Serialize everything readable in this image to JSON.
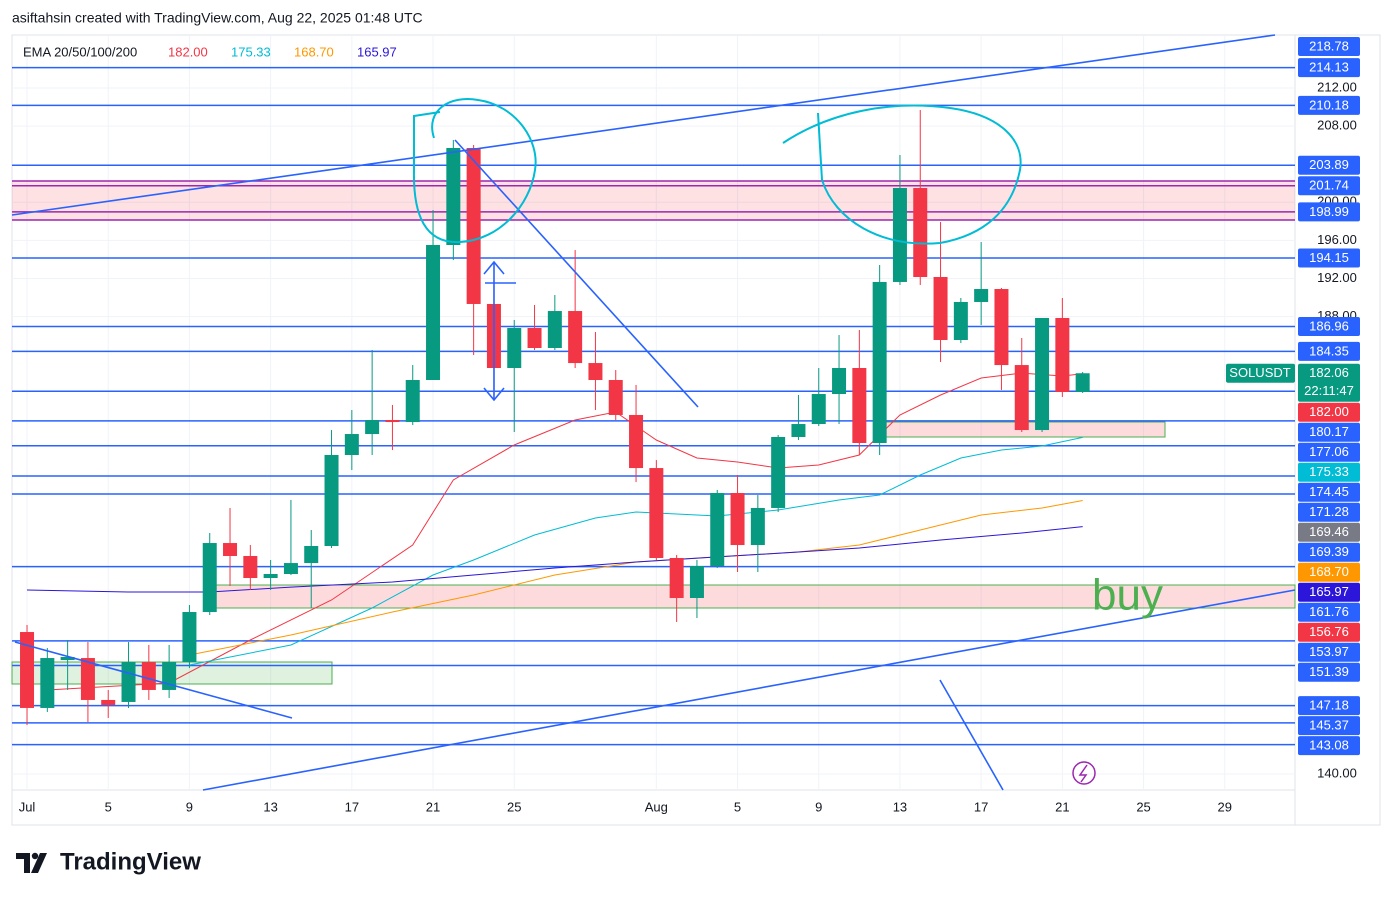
{
  "header": "asiftahsin created with TradingView.com, Aug 22, 2025 01:48 UTC",
  "logo": "TradingView",
  "chart_data": {
    "type": "candlestick",
    "symbol": "SOLUSDT",
    "countdown": "22:11:47",
    "indicator": "EMA 20/50/100/200",
    "annotation": "buy",
    "up_color": "#089981",
    "down_color": "#f23645",
    "open": [
      154.9,
      146.93,
      151.96,
      152.17,
      147.77,
      147.56,
      151.75,
      148.82,
      151.75,
      157.0,
      164.24,
      162.88,
      160.57,
      160.99,
      162.14,
      163.93,
      173.48,
      175.68,
      177.15,
      176.94,
      181.35,
      195.52,
      205.7,
      189.33,
      182.61,
      186.81,
      184.71,
      188.59,
      183.13,
      181.35,
      177.68,
      172.11,
      162.67,
      158.47,
      161.83,
      169.49,
      164.03,
      167.92,
      175.37,
      176.73,
      179.88,
      182.61,
      174.74,
      191.64,
      201.5,
      192.16,
      185.55,
      189.54,
      190.9,
      182.92,
      176.1,
      187.86,
      180.09
    ],
    "high": [
      155.64,
      153.22,
      154.06,
      153.85,
      148.82,
      153.85,
      153.54,
      153.54,
      157.74,
      165.29,
      167.92,
      164.03,
      162.46,
      168.76,
      165.61,
      176.1,
      178.2,
      184.5,
      178.73,
      182.92,
      199.19,
      206.54,
      206.01,
      191.85,
      187.65,
      189.22,
      190.27,
      194.99,
      186.39,
      182.4,
      180.83,
      172.95,
      162.98,
      162.46,
      169.81,
      171.38,
      169.28,
      175.58,
      179.78,
      182.61,
      186.07,
      186.6,
      193.42,
      204.96,
      209.69,
      197.93,
      189.96,
      195.83,
      191.01,
      185.76,
      187.86,
      189.96,
      182.19
    ],
    "low": [
      145.14,
      146.51,
      148.82,
      145.46,
      145.88,
      146.93,
      147.77,
      147.98,
      151.12,
      156.69,
      159.73,
      159.31,
      159.31,
      160.88,
      157.42,
      163.72,
      171.9,
      173.48,
      174.0,
      176.63,
      181.35,
      193.94,
      183.97,
      179.46,
      175.89,
      184.5,
      184.5,
      182.61,
      178.2,
      177.15,
      170.64,
      162.46,
      155.95,
      156.37,
      161.62,
      161.2,
      161.2,
      167.5,
      175.05,
      176.52,
      176.73,
      173.48,
      173.48,
      191.32,
      191.32,
      183.24,
      185.23,
      187.12,
      180.3,
      175.89,
      175.89,
      179.57,
      179.99
    ],
    "close": [
      146.93,
      152.17,
      152.28,
      147.77,
      147.24,
      151.75,
      148.82,
      151.75,
      157.0,
      164.24,
      162.88,
      160.57,
      160.99,
      162.14,
      163.93,
      173.48,
      175.68,
      177.15,
      176.94,
      181.35,
      195.52,
      205.7,
      189.33,
      182.61,
      186.81,
      184.71,
      188.59,
      183.13,
      181.35,
      177.68,
      172.11,
      162.67,
      158.47,
      161.83,
      169.49,
      164.03,
      167.92,
      175.37,
      176.73,
      179.88,
      182.61,
      174.74,
      191.64,
      201.5,
      192.16,
      185.55,
      189.54,
      190.9,
      182.92,
      176.1,
      187.86,
      180.09,
      182.06
    ],
    "xlim": [
      -0.74,
      62.46
    ],
    "xticks": [
      {
        "value": 0,
        "label": "Jul"
      },
      {
        "value": 4,
        "label": "5"
      },
      {
        "value": 8,
        "label": "9"
      },
      {
        "value": 12,
        "label": "13"
      },
      {
        "value": 16,
        "label": "17"
      },
      {
        "value": 20,
        "label": "21"
      },
      {
        "value": 24,
        "label": "25"
      },
      {
        "value": 31,
        "label": "Aug"
      },
      {
        "value": 35,
        "label": "5"
      },
      {
        "value": 39,
        "label": "9"
      },
      {
        "value": 43,
        "label": "13"
      },
      {
        "value": 47,
        "label": "17"
      },
      {
        "value": 51,
        "label": "21"
      },
      {
        "value": 55,
        "label": "25"
      },
      {
        "value": 59,
        "label": "29"
      }
    ],
    "ylim": [
      138.32,
      217.56
    ],
    "yticks": [
      {
        "value": 140,
        "label": "140.00"
      },
      {
        "value": 188,
        "label": "188.00"
      },
      {
        "value": 192,
        "label": "192.00"
      },
      {
        "value": 196,
        "label": "196.00"
      },
      {
        "value": 200,
        "label": "200.00"
      },
      {
        "value": 208,
        "label": "208.00"
      },
      {
        "value": 212,
        "label": "212.00"
      }
    ],
    "grid": true,
    "series": [
      {
        "color": "#f23645",
        "last_label": "182.00",
        "x": [
          1,
          7,
          11,
          15,
          19,
          21,
          24,
          27,
          29,
          31,
          33,
          35,
          37,
          39,
          41,
          43,
          45,
          47,
          49,
          51,
          52
        ],
        "values": [
          148.82,
          149.55,
          154.06,
          158.26,
          164.03,
          170.86,
          174.53,
          177.15,
          177.99,
          175.05,
          173.16,
          172.75,
          172.11,
          172.43,
          173.48,
          177.68,
          179.78,
          181.56,
          182.08,
          181.77,
          182.0
        ]
      },
      {
        "color": "#00bcd4",
        "last_label": "175.33",
        "x": [
          8,
          13,
          17,
          20,
          22,
          25,
          28,
          30,
          32,
          34,
          37,
          40,
          42,
          44,
          46,
          48,
          50,
          52
        ],
        "values": [
          151.44,
          153.54,
          157.42,
          160.88,
          162.46,
          165.08,
          166.87,
          167.5,
          167.29,
          167.08,
          167.71,
          168.76,
          169.28,
          171.38,
          173.16,
          174.0,
          174.42,
          175.33
        ]
      },
      {
        "color": "#ff9800",
        "last_label": "168.70",
        "x": [
          8,
          13,
          18,
          22,
          26,
          30,
          34,
          38,
          41,
          44,
          47,
          50,
          52
        ],
        "values": [
          152.49,
          154.59,
          157.0,
          158.79,
          160.88,
          162.25,
          162.78,
          163.3,
          164.03,
          165.61,
          167.18,
          167.92,
          168.7
        ]
      },
      {
        "color": "#2b16d9",
        "last_label": "165.97",
        "x": [
          0,
          5,
          9,
          13,
          18,
          22,
          26,
          30,
          34,
          38,
          41,
          45,
          49,
          52
        ],
        "values": [
          159.31,
          159.1,
          159.1,
          159.62,
          160.15,
          160.88,
          161.62,
          162.25,
          162.78,
          163.3,
          163.72,
          164.56,
          165.29,
          165.97
        ]
      }
    ],
    "level_label_color": "#2962ff",
    "levels": [
      {
        "price": 214.13,
        "color": "#2962ff"
      },
      {
        "price": 210.18,
        "color": "#2962ff"
      },
      {
        "price": 203.89,
        "color": "#2962ff"
      },
      {
        "price": 201.74,
        "color": "#9c27b0"
      },
      {
        "price": 198.99,
        "color": "#9c27b0"
      },
      {
        "price": 194.15,
        "color": "#2962ff"
      },
      {
        "price": 186.96,
        "color": "#2962ff"
      },
      {
        "price": 184.35,
        "color": "#2962ff"
      },
      {
        "price": 180.17,
        "color": "#2962ff"
      },
      {
        "price": 177.06,
        "color": "#2962ff"
      },
      {
        "price": 174.45,
        "color": "#2962ff"
      },
      {
        "price": 171.28,
        "color": "#2962ff"
      },
      {
        "price": 169.39,
        "color": "#2962ff"
      },
      {
        "price": 161.76,
        "color": "#2962ff"
      },
      {
        "price": 153.97,
        "color": "#2962ff"
      },
      {
        "price": 151.39,
        "color": "#2962ff"
      },
      {
        "price": 147.18,
        "color": "#2962ff"
      },
      {
        "price": 145.37,
        "color": "#2962ff"
      },
      {
        "price": 143.08,
        "color": "#2962ff"
      }
    ],
    "markers": [
      {
        "price": 218.78,
        "color": "#2962ff"
      },
      {
        "price": 169.46,
        "color": "#787b86"
      },
      {
        "price": 156.76,
        "color": "#f23645"
      }
    ]
  }
}
